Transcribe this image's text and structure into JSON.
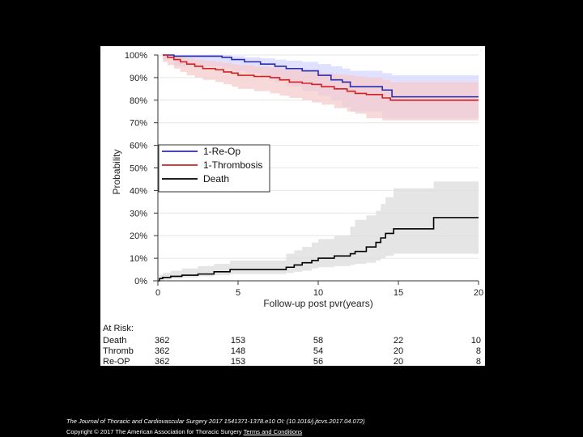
{
  "chart_data": {
    "type": "line",
    "subtype": "kaplan-meier step curves with shaded confidence bands",
    "xlabel": "Follow-up post pvr(years)",
    "ylabel": "Probability",
    "xlim": [
      0,
      20
    ],
    "ylim": [
      0,
      100
    ],
    "x_ticks": [
      "0",
      "5",
      "10",
      "15",
      "20"
    ],
    "y_ticks": [
      "0%",
      "10%",
      "20%",
      "30%",
      "40%",
      "50%",
      "60%",
      "70%",
      "80%",
      "90%",
      "100%"
    ],
    "grid": "horizontal",
    "legend_position": "middle-left",
    "series": [
      {
        "name": "1-Re-Op",
        "color": "#2b2bb0",
        "band_color": "#d6d6ff",
        "x": [
          0.3,
          1.0,
          4.0,
          4.6,
          5.4,
          6.4,
          7.3,
          8.0,
          9.0,
          10.0,
          10.8,
          11.5,
          12.0,
          14.0,
          14.6,
          20.0
        ],
        "y": [
          100,
          99.5,
          99,
          98,
          97,
          96,
          95,
          94,
          93,
          91,
          89,
          88,
          86,
          84.5,
          81.5,
          81.5
        ],
        "upper": [
          100,
          100,
          100,
          99.5,
          99,
          98.5,
          98,
          97.5,
          97,
          96,
          95,
          94,
          93,
          92,
          91,
          91
        ],
        "lower": [
          99,
          98,
          95,
          94,
          93,
          92,
          90,
          88,
          86,
          84,
          82,
          80,
          77,
          75,
          72,
          72
        ]
      },
      {
        "name": "1-Thrombosis",
        "color": "#d42020",
        "band_color": "#f5cccc",
        "x": [
          0.3,
          0.6,
          1.0,
          1.4,
          1.8,
          2.3,
          2.8,
          3.6,
          4.1,
          4.6,
          5.0,
          6.0,
          7.0,
          7.6,
          8.2,
          9.0,
          9.6,
          10.2,
          11.0,
          11.8,
          12.3,
          13.0,
          14.0,
          14.5,
          20.0
        ],
        "y": [
          100,
          99,
          98,
          97,
          96,
          95,
          94,
          93.5,
          92.5,
          92,
          91,
          90.5,
          90,
          89,
          88,
          87.5,
          87,
          86,
          85,
          84,
          83,
          82.5,
          81,
          80,
          80
        ],
        "upper": [
          100,
          100,
          99.5,
          99,
          98.5,
          98,
          97.5,
          97,
          96.5,
          96,
          95.5,
          95,
          94.5,
          94,
          93.5,
          93,
          92.5,
          92,
          91.5,
          91,
          90.5,
          90,
          89,
          88,
          88
        ],
        "lower": [
          98.5,
          97,
          95.5,
          94,
          92.5,
          91,
          90,
          89,
          88,
          87,
          86,
          85,
          84,
          83,
          82,
          81,
          80,
          79,
          78,
          76.5,
          75,
          74,
          72,
          71,
          71
        ]
      },
      {
        "name": "Death",
        "color": "#000000",
        "band_color": "#dcdcdc",
        "x": [
          0,
          0.1,
          0.3,
          0.8,
          1.5,
          2.5,
          3.5,
          4.5,
          8.0,
          8.5,
          9.0,
          9.6,
          10.0,
          11.0,
          12.0,
          12.3,
          13.0,
          13.6,
          13.9,
          14.2,
          14.7,
          17.2,
          20.0
        ],
        "y": [
          0,
          1,
          1.5,
          2,
          2.5,
          3,
          4,
          5,
          6,
          7,
          8,
          9,
          10,
          11,
          12,
          13,
          15,
          17,
          19,
          21,
          23,
          28,
          28
        ],
        "upper": [
          0.5,
          2.5,
          3.5,
          4.5,
          5.5,
          6.5,
          7.5,
          9,
          12,
          13.5,
          15,
          17,
          18.5,
          20,
          24,
          27,
          29,
          31,
          34,
          37,
          41,
          44,
          44
        ],
        "lower": [
          0,
          0,
          0,
          0.5,
          1,
          1.5,
          2,
          2.5,
          3,
          3.5,
          4,
          4.5,
          5.5,
          6,
          6.5,
          7,
          7.5,
          8,
          9,
          10,
          11,
          12,
          12
        ]
      }
    ],
    "at_risk": {
      "title": "At Risk:",
      "columns_years": [
        0,
        5,
        10,
        15,
        20
      ],
      "rows": [
        {
          "label": "Death",
          "values": [
            "362",
            "153",
            "58",
            "22",
            "10"
          ]
        },
        {
          "label": "Thromb",
          "values": [
            "362",
            "148",
            "54",
            "20",
            "8"
          ]
        },
        {
          "label": "Re-OP",
          "values": [
            "362",
            "153",
            "56",
            "20",
            "8"
          ]
        }
      ]
    }
  },
  "footer": {
    "citation": "The Journal of Thoracic and Cardiovascular Surgery 2017 1541371-1378.e10 OI: (10.1016/j.jtcvs.2017.04.072)",
    "copyright_prefix": "Copyright © 2017 The American Association for Thoracic Surgery ",
    "copyright_link": "Terms and Conditions"
  }
}
